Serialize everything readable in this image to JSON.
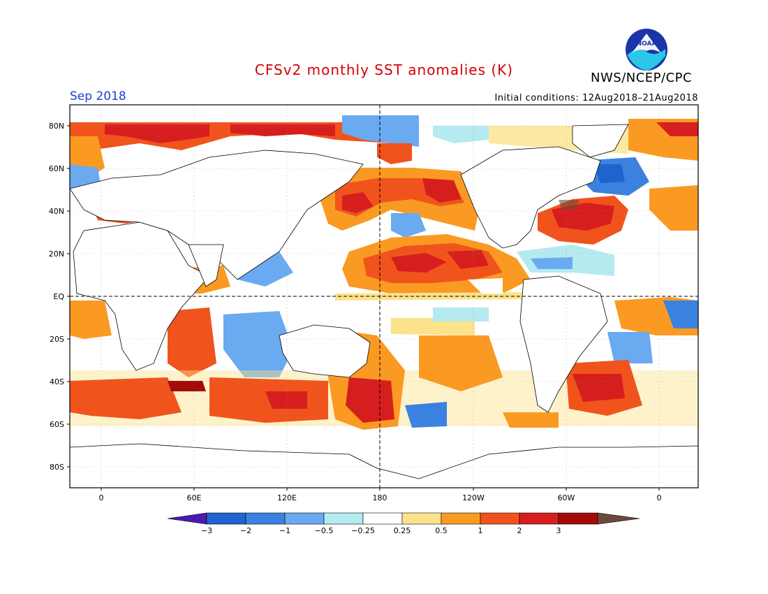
{
  "title": "CFSv2 monthly SST anomalies (K)",
  "period": "Sep 2018",
  "initial_conditions": "Initial conditions: 12Aug2018–21Aug2018",
  "organization": "NWS/NCEP/CPC",
  "logo_text": "NOAA",
  "map": {
    "lon_labels": [
      "0",
      "60E",
      "120E",
      "180",
      "120W",
      "60W",
      "0"
    ],
    "lat_labels": [
      "80N",
      "60N",
      "40N",
      "20N",
      "EQ",
      "20S",
      "40S",
      "60S",
      "80S"
    ]
  },
  "colorbar": {
    "labels": [
      "−3",
      "−2",
      "−1",
      "−0.5",
      "−0.25",
      "0.25",
      "0.5",
      "1",
      "2",
      "3"
    ],
    "colors": [
      "#4a1ab2",
      "#1f63cf",
      "#3b82e0",
      "#6aaaf0",
      "#b4eaf0",
      "#ffffff",
      "#fde28c",
      "#fa9a23",
      "#f0541c",
      "#d71e1e",
      "#a30b0b",
      "#6e4a3c"
    ]
  }
}
